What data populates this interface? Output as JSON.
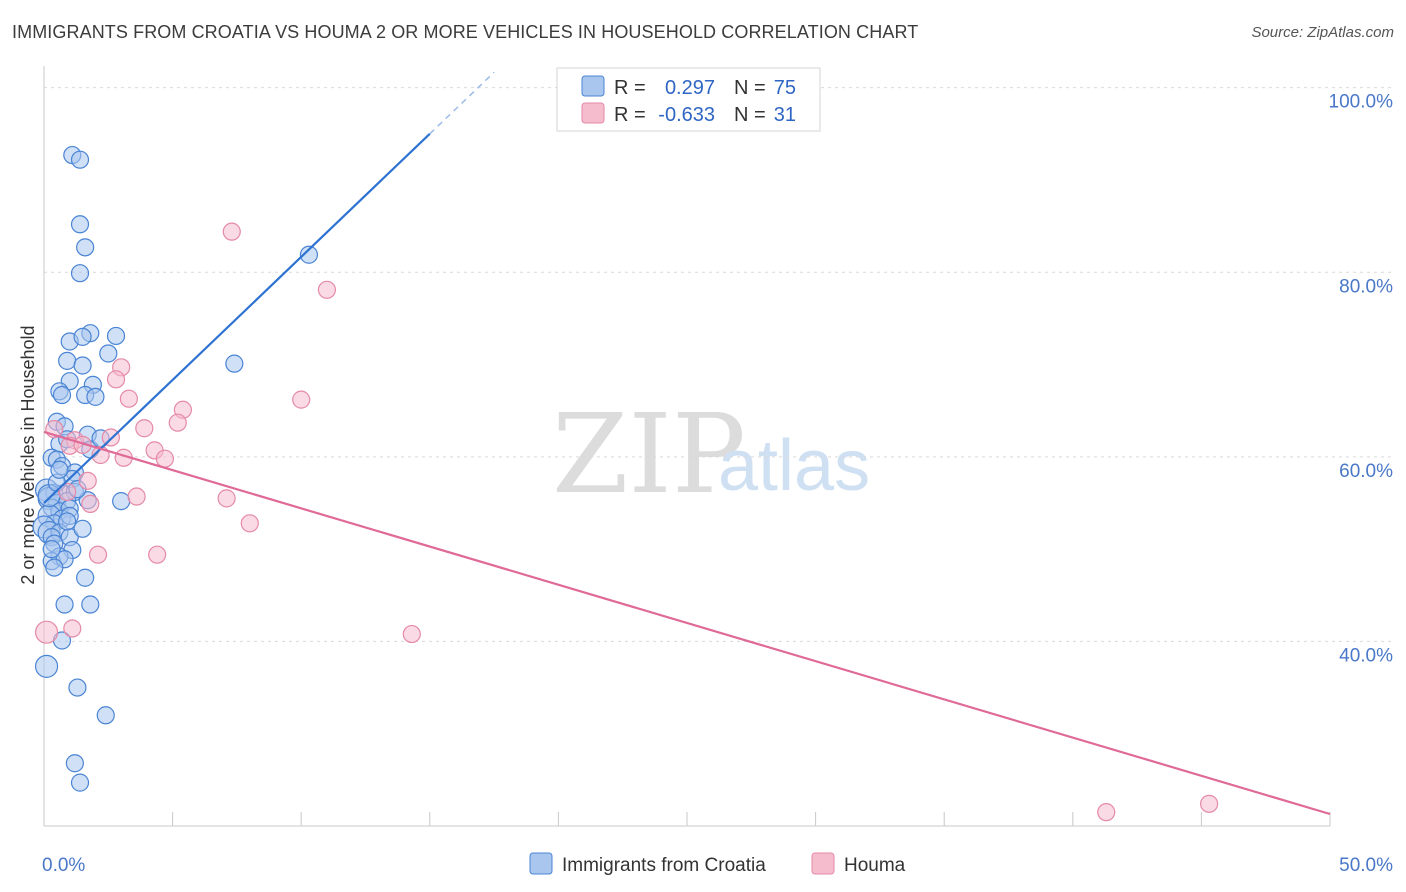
{
  "title": "IMMIGRANTS FROM CROATIA VS HOUMA 2 OR MORE VEHICLES IN HOUSEHOLD CORRELATION CHART",
  "source": "Source: ZipAtlas.com",
  "watermark": {
    "zip": "ZIP",
    "atlas": "atlas"
  },
  "colors": {
    "blue_fill": "#a9c6ee",
    "blue_stroke": "#4a84d4",
    "blue_line": "#2e72d2",
    "pink_fill": "#f5bccd",
    "pink_stroke": "#e58aa7",
    "pink_line": "#e06a97",
    "grid": "#d9d9d9",
    "tick_text": "#4a78c8"
  },
  "legend": {
    "r_label": "R =",
    "n_label": "N =",
    "rows": [
      {
        "r": "0.297",
        "n": "75"
      },
      {
        "r": "-0.633",
        "n": "31"
      }
    ]
  },
  "chart_data": {
    "type": "scatter",
    "xlabel": "",
    "ylabel": "2 or more Vehicles in Household",
    "xlim": [
      0,
      50
    ],
    "ylim": [
      20,
      103
    ],
    "x_tick_labels": [
      "0.0%",
      "50.0%"
    ],
    "y_ticks": [
      40,
      60,
      80,
      100
    ],
    "y_tick_labels": [
      "40.0%",
      "60.0%",
      "80.0%",
      "100.0%"
    ],
    "legend_position": "bottom",
    "series": [
      {
        "name": "Immigrants from Croatia",
        "r": 0.297,
        "n": 75,
        "trend": {
          "x0": 0.0,
          "y0": 55.0,
          "x1": 15.0,
          "y1": 95.0,
          "dash_to_x": 17.5
        },
        "points": [
          [
            1.1,
            92.7
          ],
          [
            1.4,
            92.2
          ],
          [
            1.4,
            85.2
          ],
          [
            1.6,
            82.7
          ],
          [
            1.4,
            79.9
          ],
          [
            10.3,
            81.9
          ],
          [
            1.8,
            73.4
          ],
          [
            2.8,
            73.1
          ],
          [
            1.0,
            72.5
          ],
          [
            1.5,
            73.0
          ],
          [
            2.5,
            71.2
          ],
          [
            0.9,
            70.4
          ],
          [
            7.4,
            70.1
          ],
          [
            1.5,
            69.9
          ],
          [
            1.0,
            68.2
          ],
          [
            1.9,
            67.8
          ],
          [
            0.6,
            67.1
          ],
          [
            0.7,
            66.7
          ],
          [
            1.6,
            66.7
          ],
          [
            2.0,
            66.5
          ],
          [
            0.5,
            63.8
          ],
          [
            0.8,
            63.3
          ],
          [
            1.7,
            62.4
          ],
          [
            0.6,
            61.4
          ],
          [
            1.8,
            60.8
          ],
          [
            0.3,
            59.9
          ],
          [
            0.5,
            59.7
          ],
          [
            0.7,
            59.0
          ],
          [
            1.2,
            58.3
          ],
          [
            1.1,
            57.6
          ],
          [
            0.1,
            56.4
          ],
          [
            0.4,
            56.1
          ],
          [
            0.7,
            56.0
          ],
          [
            1.2,
            56.2
          ],
          [
            0.2,
            55.5
          ],
          [
            0.5,
            55.0
          ],
          [
            0.9,
            55.2
          ],
          [
            1.7,
            55.3
          ],
          [
            3.0,
            55.2
          ],
          [
            0.3,
            54.5
          ],
          [
            0.6,
            54.1
          ],
          [
            1.0,
            54.4
          ],
          [
            0.2,
            53.6
          ],
          [
            0.7,
            53.3
          ],
          [
            1.0,
            53.6
          ],
          [
            0.4,
            52.8
          ],
          [
            0.0,
            52.4
          ],
          [
            0.2,
            51.8
          ],
          [
            0.6,
            51.8
          ],
          [
            0.3,
            51.3
          ],
          [
            1.0,
            51.3
          ],
          [
            0.4,
            50.6
          ],
          [
            1.1,
            49.9
          ],
          [
            0.6,
            49.2
          ],
          [
            0.3,
            48.7
          ],
          [
            0.8,
            48.9
          ],
          [
            0.4,
            48.0
          ],
          [
            1.6,
            46.9
          ],
          [
            0.8,
            44.0
          ],
          [
            1.8,
            44.0
          ],
          [
            0.7,
            40.1
          ],
          [
            0.1,
            37.3
          ],
          [
            1.3,
            35.0
          ],
          [
            2.4,
            32.0
          ],
          [
            1.2,
            26.8
          ],
          [
            1.4,
            24.7
          ],
          [
            0.2,
            55.8
          ],
          [
            0.5,
            57.2
          ],
          [
            1.3,
            56.5
          ],
          [
            0.9,
            53.0
          ],
          [
            0.3,
            50.0
          ],
          [
            1.5,
            52.2
          ],
          [
            0.6,
            58.6
          ],
          [
            0.9,
            61.9
          ],
          [
            2.2,
            62.0
          ]
        ]
      },
      {
        "name": "Houma",
        "r": -0.633,
        "n": 31,
        "trend": {
          "x0": 0.0,
          "y0": 62.7,
          "x1": 50.0,
          "y1": 21.3
        },
        "points": [
          [
            7.3,
            84.4
          ],
          [
            11.0,
            78.1
          ],
          [
            3.0,
            69.7
          ],
          [
            2.8,
            68.4
          ],
          [
            10.0,
            66.2
          ],
          [
            3.3,
            66.3
          ],
          [
            5.4,
            65.1
          ],
          [
            5.2,
            63.7
          ],
          [
            3.9,
            63.1
          ],
          [
            2.6,
            62.1
          ],
          [
            1.2,
            61.8
          ],
          [
            1.0,
            61.2
          ],
          [
            1.5,
            61.3
          ],
          [
            4.3,
            60.7
          ],
          [
            3.1,
            59.9
          ],
          [
            4.7,
            59.8
          ],
          [
            1.7,
            57.4
          ],
          [
            0.9,
            56.2
          ],
          [
            3.6,
            55.7
          ],
          [
            7.1,
            55.5
          ],
          [
            1.8,
            54.9
          ],
          [
            8.0,
            52.8
          ],
          [
            2.1,
            49.4
          ],
          [
            4.4,
            49.4
          ],
          [
            1.1,
            41.4
          ],
          [
            0.1,
            41.0
          ],
          [
            14.3,
            40.8
          ],
          [
            41.3,
            21.5
          ],
          [
            45.3,
            22.4
          ],
          [
            0.4,
            63.0
          ],
          [
            2.2,
            60.2
          ]
        ]
      }
    ]
  }
}
